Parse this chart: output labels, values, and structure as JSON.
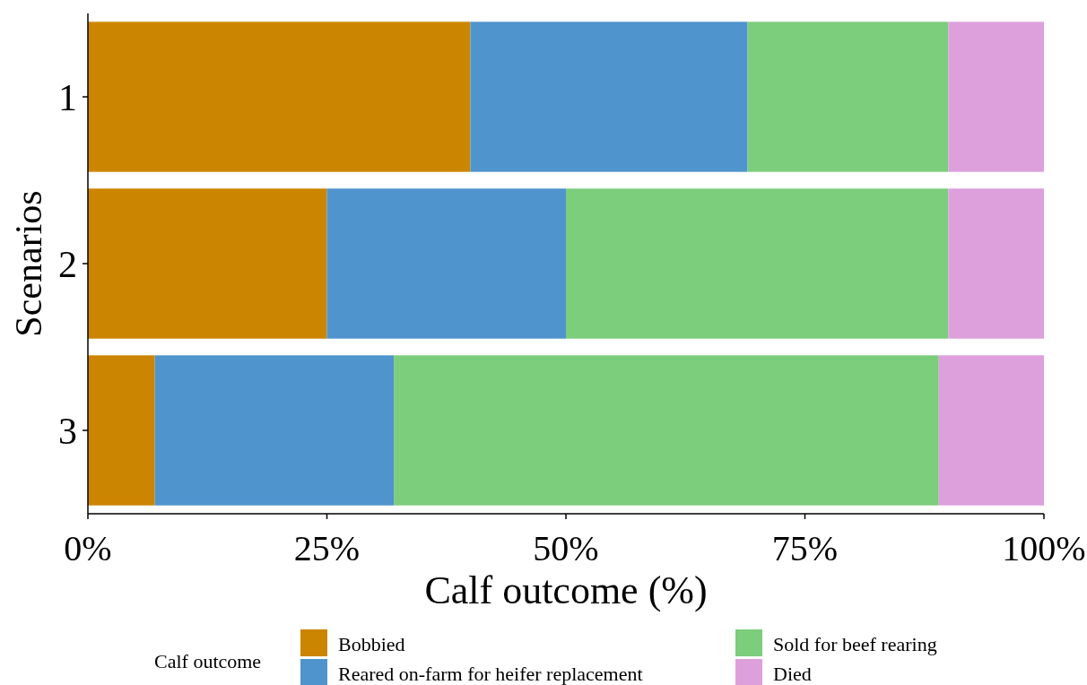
{
  "chart_data": {
    "type": "bar",
    "orientation": "horizontal",
    "stacked": true,
    "xlabel": "Calf outcome (%)",
    "ylabel": "Scenarios",
    "legend_title": "Calf outcome",
    "legend": "bottom",
    "grid": false,
    "categories": [
      "1",
      "2",
      "3"
    ],
    "series": [
      {
        "name": "Bobbied",
        "color": "#cc8500",
        "values": [
          40,
          25,
          7
        ]
      },
      {
        "name": "Reared on-farm for heifer replacement",
        "color": "#4f94cd",
        "values": [
          29,
          25,
          25
        ]
      },
      {
        "name": "Sold for beef rearing",
        "color": "#7ccd7c",
        "values": [
          21,
          40,
          57
        ]
      },
      {
        "name": "Died",
        "color": "#dda0dd",
        "values": [
          10,
          10,
          11
        ]
      }
    ],
    "xlim": [
      0,
      100
    ],
    "xticks": [
      {
        "value": 0,
        "label": "0%"
      },
      {
        "value": 25,
        "label": "25%"
      },
      {
        "value": 50,
        "label": "50%"
      },
      {
        "value": 75,
        "label": "75%"
      },
      {
        "value": 100,
        "label": "100%"
      }
    ]
  }
}
